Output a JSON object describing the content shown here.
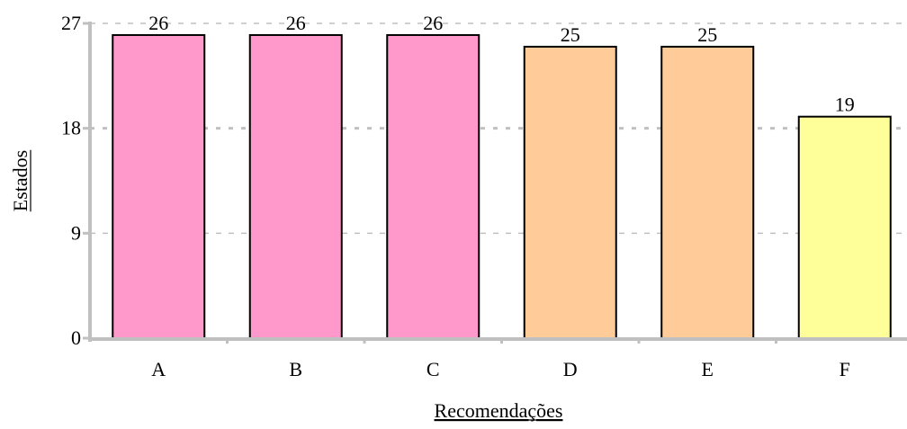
{
  "chart_data": {
    "type": "bar",
    "categories": [
      "A",
      "B",
      "C",
      "D",
      "E",
      "F"
    ],
    "values": [
      26,
      26,
      26,
      25,
      25,
      19
    ],
    "colors": [
      "#ff99cc",
      "#ff99cc",
      "#ff99cc",
      "#ffcc99",
      "#ffcc99",
      "#ffff99"
    ],
    "data_labels": [
      "26",
      "26",
      "26",
      "25",
      "25",
      "19"
    ],
    "xlabel": "Recomendações",
    "ylabel": "Estados",
    "ylim": [
      0,
      27
    ],
    "yticks": [
      0,
      9,
      18,
      27
    ],
    "ytick_labels": [
      "0",
      "9",
      "18",
      "27"
    ],
    "grid": true,
    "grid_color": "#c0c0c0",
    "axis_color": "#c0c0c0",
    "bar_edge_color": "#000000"
  }
}
